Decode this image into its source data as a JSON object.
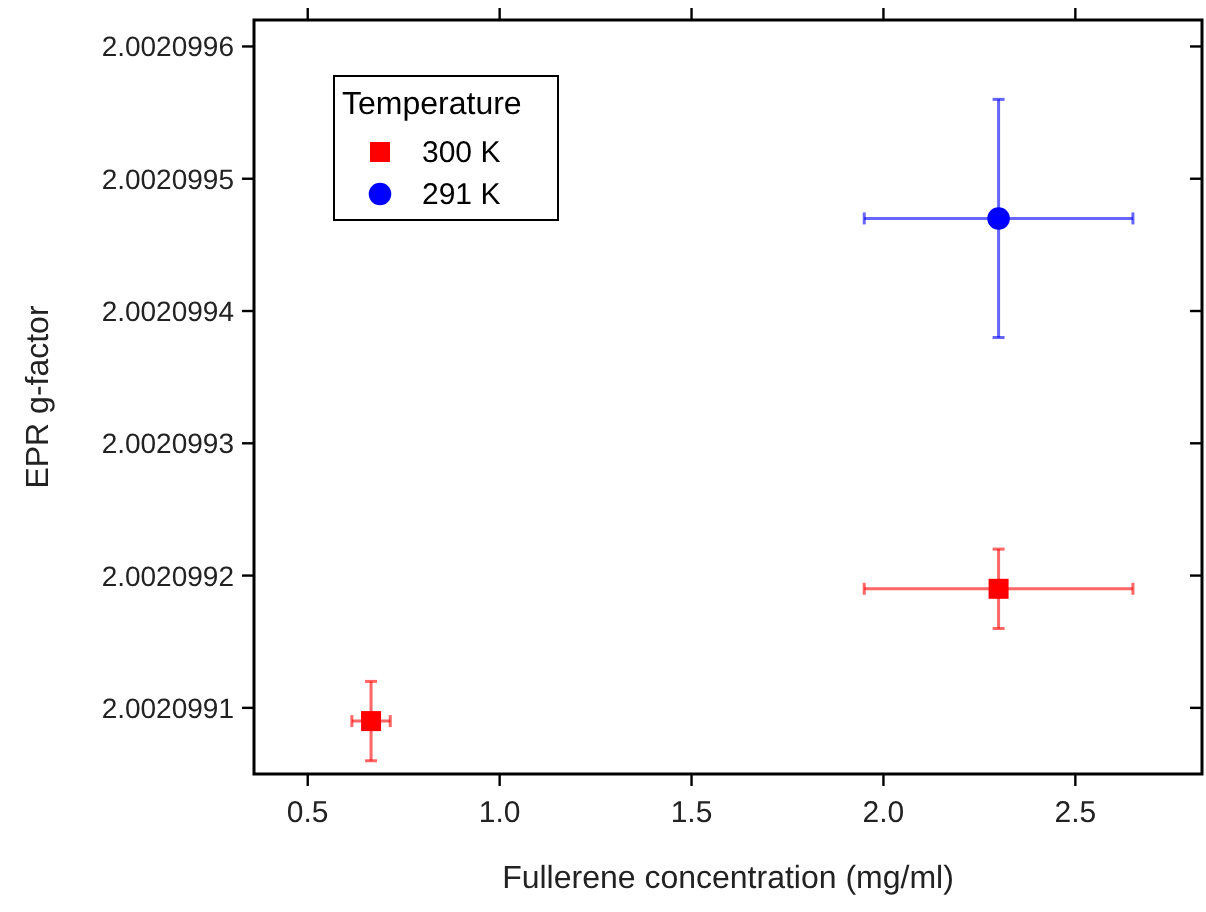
{
  "chart_data": {
    "type": "scatter",
    "xlabel": "Fullerene concentration (mg/ml)",
    "ylabel": "EPR g-factor",
    "legend_title": "Temperature",
    "legend": "top left",
    "grid": false,
    "xlim": [
      0.36,
      2.83
    ],
    "xticks": [
      0.5,
      {
        "value": 1,
        "label": "1.0"
      },
      1.5,
      {
        "value": 2,
        "label": "2.0"
      },
      2.5
    ],
    "ylim": [
      2.00209905,
      2.00209962
    ],
    "yticks": [
      2.0020991,
      2.0020992,
      2.0020993,
      2.0020994,
      2.0020995,
      2.0020996
    ],
    "x": [
      0.665,
      2.3
    ],
    "series": [
      {
        "name": "300 K",
        "color": "#ff0000",
        "marker": "square",
        "values": [
          2.00209909,
          2.00209919
        ],
        "errors": [
          3e-08,
          3e-08
        ],
        "xerrors": [
          0.05,
          0.35
        ]
      },
      {
        "name": "291 K",
        "color": "#0000ff",
        "marker": "circle",
        "values": [
          null,
          2.00209947
        ],
        "errors": [
          null,
          9e-08
        ],
        "xerrors": [
          null,
          0.35
        ]
      }
    ]
  }
}
